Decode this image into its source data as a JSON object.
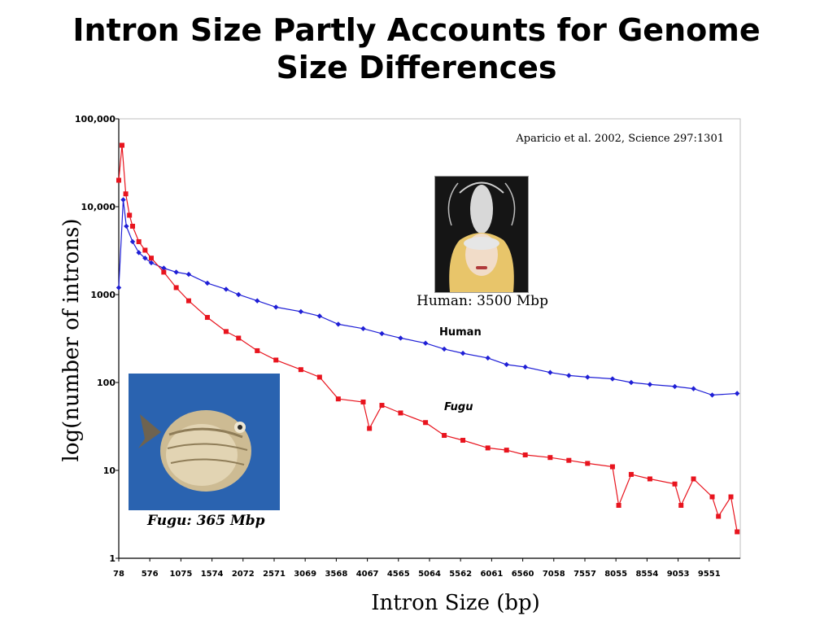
{
  "slide": {
    "title_line1": "Intron Size Partly Accounts for Genome",
    "title_line2": "Size Differences",
    "citation": "Aparicio et al. 2002, Science 297:1301",
    "human_caption": "Human: 3500 Mbp",
    "fugu_caption": "Fugu: 365 Mbp",
    "human_photo_icon": "person-with-lobster-headpiece-photo",
    "fugu_photo_icon": "pufferfish-photo"
  },
  "chart_data": {
    "type": "line",
    "title": "",
    "xlabel": "Intron Size (bp)",
    "ylabel": "log(number of introns)",
    "yscale": "log",
    "ylim": [
      1,
      100000
    ],
    "xlim": [
      78,
      10050
    ],
    "y_ticks": [
      1,
      10,
      100,
      1000,
      10000,
      100000
    ],
    "y_tick_labels": [
      "1",
      "10",
      "100",
      "1000",
      "10,000",
      "100,000"
    ],
    "x_ticks": [
      78,
      576,
      1075,
      1574,
      2072,
      2571,
      3069,
      3568,
      4067,
      4565,
      5064,
      5562,
      6061,
      6560,
      7058,
      7557,
      8055,
      8554,
      9053,
      9551
    ],
    "x_tick_labels": [
      "78",
      "576",
      "1075",
      "1574",
      "2072",
      "2571",
      "3069",
      "3568",
      "4067",
      "4565",
      "5064",
      "5562",
      "6061",
      "6560",
      "7058",
      "7557",
      "8055",
      "8554",
      "9053",
      "9551"
    ],
    "grid": false,
    "colors": {
      "human": "#1f1fd6",
      "fugu": "#e8141e"
    },
    "series": [
      {
        "name": "Human",
        "x": [
          78,
          150,
          200,
          300,
          400,
          500,
          600,
          800,
          1000,
          1200,
          1500,
          1800,
          2000,
          2300,
          2600,
          3000,
          3300,
          3600,
          4000,
          4300,
          4600,
          5000,
          5300,
          5600,
          6000,
          6300,
          6600,
          7000,
          7300,
          7600,
          8000,
          8300,
          8600,
          9000,
          9300,
          9600,
          10000
        ],
        "values": [
          1200,
          12000,
          6000,
          4000,
          3000,
          2600,
          2300,
          2000,
          1800,
          1700,
          1350,
          1150,
          1000,
          850,
          720,
          640,
          570,
          460,
          410,
          360,
          320,
          280,
          240,
          215,
          190,
          160,
          150,
          130,
          120,
          115,
          110,
          100,
          95,
          90,
          85,
          72,
          75
        ]
      },
      {
        "name": "Fugu",
        "x": [
          78,
          130,
          190,
          250,
          300,
          400,
          500,
          600,
          800,
          1000,
          1200,
          1500,
          1800,
          2000,
          2300,
          2600,
          3000,
          3300,
          3600,
          4000,
          4100,
          4300,
          4600,
          5000,
          5300,
          5600,
          6000,
          6300,
          6600,
          7000,
          7300,
          7600,
          8000,
          8100,
          8300,
          8600,
          9000,
          9100,
          9300,
          9600,
          9700,
          9900,
          10000
        ],
        "values": [
          20000,
          50000,
          14000,
          8000,
          6000,
          4000,
          3200,
          2600,
          1800,
          1200,
          850,
          550,
          380,
          320,
          230,
          180,
          140,
          115,
          65,
          60,
          30,
          55,
          45,
          35,
          25,
          22,
          18,
          17,
          15,
          14,
          13,
          12,
          11,
          4,
          9,
          8,
          7,
          4,
          8,
          5,
          3,
          5,
          2
        ]
      }
    ],
    "annotations": [
      "Human",
      "Fugu"
    ]
  }
}
